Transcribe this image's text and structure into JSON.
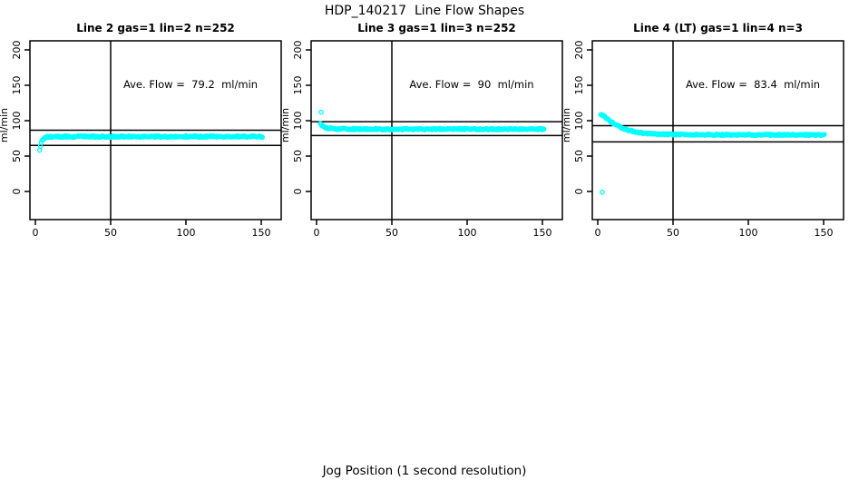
{
  "figure": {
    "title": "HDP_140217  Line Flow Shapes",
    "xlabel": "Jog Position (1 second resolution)"
  },
  "colors": {
    "marker": "#00FFFF",
    "axis": "#000000",
    "background": "#FFFFFF"
  },
  "chart_data": [
    {
      "type": "scatter",
      "title": "Line 2 gas=1 lin=2 n=252",
      "annotation": "Ave. Flow =  79.2  ml/min",
      "ave_flow_ml_min": 79.2,
      "n_points": 252,
      "ylabel": "ml/min",
      "xticks": [
        0,
        50,
        100,
        150
      ],
      "yticks": [
        0,
        50,
        100,
        150,
        200
      ],
      "xlim": [
        0,
        150
      ],
      "ylim": [
        0,
        200
      ],
      "vline_x": 50,
      "hlines": [
        86.5,
        65
      ],
      "curve": {
        "x": [
          2.8,
          3.2,
          3.6,
          4,
          4.5,
          5,
          6,
          7,
          8,
          10,
          14,
          20,
          30,
          50,
          100,
          151
        ],
        "y": [
          57,
          62,
          66,
          69,
          71.5,
          73.5,
          75.3,
          76.3,
          76.8,
          77.2,
          77.4,
          77.5,
          77.5,
          77.6,
          77.6,
          77.6
        ]
      },
      "outliers": [],
      "noise_amp": 1.2
    },
    {
      "type": "scatter",
      "title": "Line 3 gas=1 lin=3 n=252",
      "annotation": "Ave. Flow =  90  ml/min",
      "ave_flow_ml_min": 90,
      "n_points": 252,
      "ylabel": "ml/min",
      "xticks": [
        0,
        50,
        100,
        150
      ],
      "yticks": [
        0,
        50,
        100,
        150,
        200
      ],
      "xlim": [
        0,
        150
      ],
      "ylim": [
        0,
        200
      ],
      "vline_x": 50,
      "hlines": [
        98.5,
        79
      ],
      "curve": {
        "x": [
          2.5,
          3,
          3.5,
          4,
          5,
          6,
          8,
          10,
          14,
          20,
          30,
          50,
          100,
          151
        ],
        "y": [
          97,
          95,
          93.5,
          92.5,
          91,
          90.2,
          89.2,
          88.8,
          88.4,
          88.2,
          88,
          88,
          88,
          88
        ]
      },
      "outliers": [
        [
          3,
          112
        ]
      ],
      "noise_amp": 1.1
    },
    {
      "type": "scatter",
      "title": "Line 4 (LT) gas=1 lin=4 n=3",
      "annotation": "Ave. Flow =  83.4  ml/min",
      "ave_flow_ml_min": 83.4,
      "n_points": 3,
      "ylabel": "ml/min",
      "xticks": [
        0,
        50,
        100,
        150
      ],
      "yticks": [
        0,
        50,
        100,
        150,
        200
      ],
      "xlim": [
        0,
        150
      ],
      "ylim": [
        0,
        200
      ],
      "vline_x": 50,
      "hlines": [
        93,
        70
      ],
      "curve": {
        "x": [
          2,
          3,
          4,
          5,
          6,
          7,
          8,
          10,
          12,
          14,
          16,
          18,
          20,
          23,
          26,
          30,
          35,
          40,
          50,
          60,
          80,
          100,
          151
        ],
        "y": [
          108,
          107.5,
          106.5,
          105,
          103,
          101.5,
          100,
          97,
          94.3,
          92,
          90,
          88.2,
          86.8,
          85,
          83.7,
          82.5,
          81.6,
          81,
          80.5,
          80.3,
          80.1,
          80,
          80
        ]
      },
      "outliers": [
        [
          3,
          -1
        ]
      ],
      "noise_amp": 1.0
    }
  ]
}
